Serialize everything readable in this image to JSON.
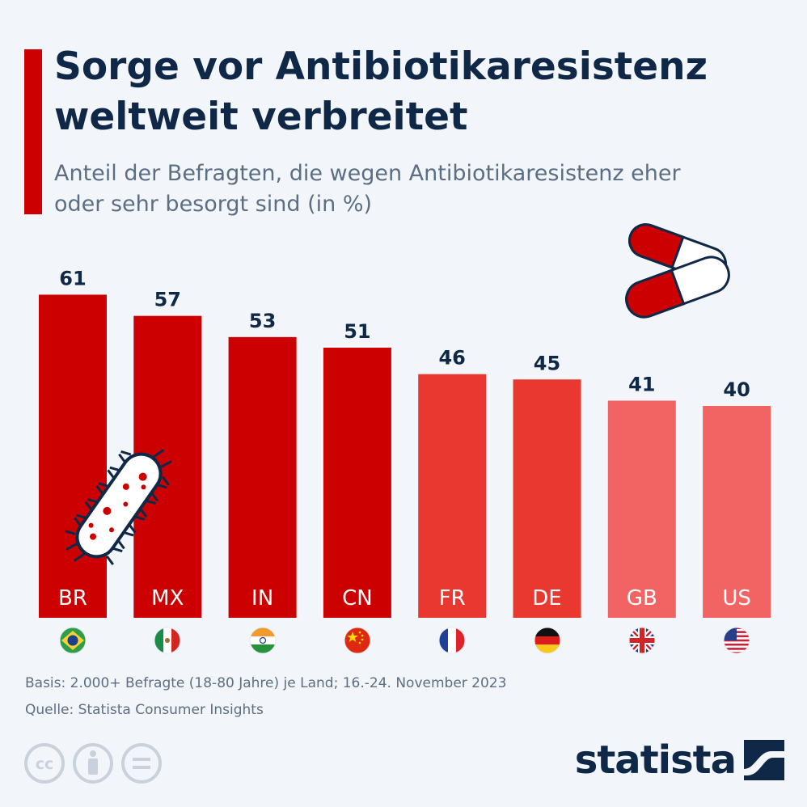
{
  "title": "Sorge vor Antibiotikaresistenz weltweit verbreitet",
  "subtitle": "Anteil der Befragten, die wegen Antibiotikaresistenz eher oder sehr besorgt sind (in %)",
  "colors": {
    "accent": "#cc0000",
    "title": "#0f2847",
    "subtitle": "#5b6e83",
    "background": "#f2f6fa",
    "bar_dark": "#cc0000",
    "bar_mid": "#e8382f",
    "bar_light": "#f26464"
  },
  "chart_data": {
    "type": "bar",
    "categories": [
      "BR",
      "MX",
      "IN",
      "CN",
      "FR",
      "DE",
      "GB",
      "US"
    ],
    "values": [
      61,
      57,
      53,
      51,
      46,
      45,
      41,
      40
    ],
    "bar_colors": [
      "#cc0000",
      "#cc0000",
      "#cc0000",
      "#cc0000",
      "#e8382f",
      "#e8382f",
      "#f26464",
      "#f26464"
    ],
    "flags": [
      "flag-brazil-icon",
      "flag-mexico-icon",
      "flag-india-icon",
      "flag-china-icon",
      "flag-france-icon",
      "flag-germany-icon",
      "flag-uk-icon",
      "flag-usa-icon"
    ],
    "title": "Sorge vor Antibiotikaresistenz weltweit verbreitet",
    "xlabel": "",
    "ylabel": "",
    "data_labels": true,
    "grid": false
  },
  "footer": {
    "basis": "Basis: 2.000+ Befragte (18-80 Jahre) je Land; 16.-24. November 2023",
    "source": "Quelle: Statista Consumer Insights"
  },
  "brand": {
    "name": "statista"
  },
  "icons": {
    "pills": "pills-icon",
    "bacterium": "bacterium-icon",
    "cc": "cc-license-icon",
    "by": "attribution-icon",
    "nd": "no-derivatives-icon",
    "logo": "statista-logo-icon"
  }
}
